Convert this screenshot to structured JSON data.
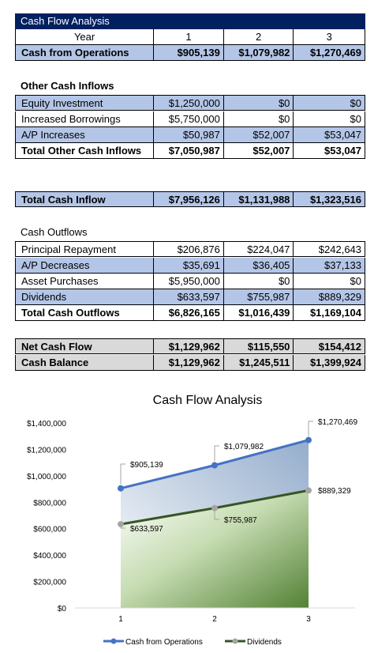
{
  "sheet": {
    "title": "Cash Flow Analysis",
    "header": {
      "label": "Year",
      "c1": "1",
      "c2": "2",
      "c3": "3"
    },
    "cash_from_operations": {
      "label": "Cash from Operations",
      "c1": "$905,139",
      "c2": "$1,079,982",
      "c3": "$1,270,469"
    },
    "other_inflows_heading": "Other Cash Inflows",
    "inflows": [
      {
        "label": "Equity Investment",
        "c1": "$1,250,000",
        "c2": "$0",
        "c3": "$0"
      },
      {
        "label": "Increased Borrowings",
        "c1": "$5,750,000",
        "c2": "$0",
        "c3": "$0"
      },
      {
        "label": "A/P Increases",
        "c1": "$50,987",
        "c2": "$52,007",
        "c3": "$53,047"
      },
      {
        "label": "Total Other Cash Inflows",
        "c1": "$7,050,987",
        "c2": "$52,007",
        "c3": "$53,047"
      }
    ],
    "total_cash_inflow": {
      "label": "Total Cash Inflow",
      "c1": "$7,956,126",
      "c2": "$1,131,988",
      "c3": "$1,323,516"
    },
    "outflows_heading": "Cash Outflows",
    "outflows": [
      {
        "label": "Principal Repayment",
        "c1": "$206,876",
        "c2": "$224,047",
        "c3": "$242,643"
      },
      {
        "label": "A/P Decreases",
        "c1": "$35,691",
        "c2": "$36,405",
        "c3": "$37,133"
      },
      {
        "label": "Asset Purchases",
        "c1": "$5,950,000",
        "c2": "$0",
        "c3": "$0"
      },
      {
        "label": "Dividends",
        "c1": "$633,597",
        "c2": "$755,987",
        "c3": "$889,329"
      },
      {
        "label": "Total Cash Outflows",
        "c1": "$6,826,165",
        "c2": "$1,016,439",
        "c3": "$1,169,104"
      }
    ],
    "net_cash_flow": {
      "label": "Net Cash Flow",
      "c1": "$1,129,962",
      "c2": "$115,550",
      "c3": "$154,412"
    },
    "cash_balance": {
      "label": "Cash Balance",
      "c1": "$1,129,962",
      "c2": "$1,245,511",
      "c3": "$1,399,924"
    }
  },
  "chart_data": {
    "type": "line",
    "title": "Cash Flow Analysis",
    "x": [
      "1",
      "2",
      "3"
    ],
    "ylim": [
      0,
      1400000
    ],
    "yticks": [
      0,
      200000,
      400000,
      600000,
      800000,
      1000000,
      1200000,
      1400000
    ],
    "ytick_labels": [
      "$0",
      "$200,000",
      "$400,000",
      "$600,000",
      "$800,000",
      "$1,000,000",
      "$1,200,000",
      "$1,400,000"
    ],
    "grid": false,
    "legend": "bottom",
    "series": [
      {
        "name": "Cash from Operations",
        "values": [
          905139,
          1079982,
          1270469
        ],
        "labels": [
          "$905,139",
          "$1,079,982",
          "$1,270,469"
        ],
        "color": "#4472c4"
      },
      {
        "name": "Dividends",
        "values": [
          633597,
          755987,
          889329
        ],
        "labels": [
          "$633,597",
          "$755,987",
          "$889,329"
        ],
        "color": "#375623"
      }
    ]
  }
}
